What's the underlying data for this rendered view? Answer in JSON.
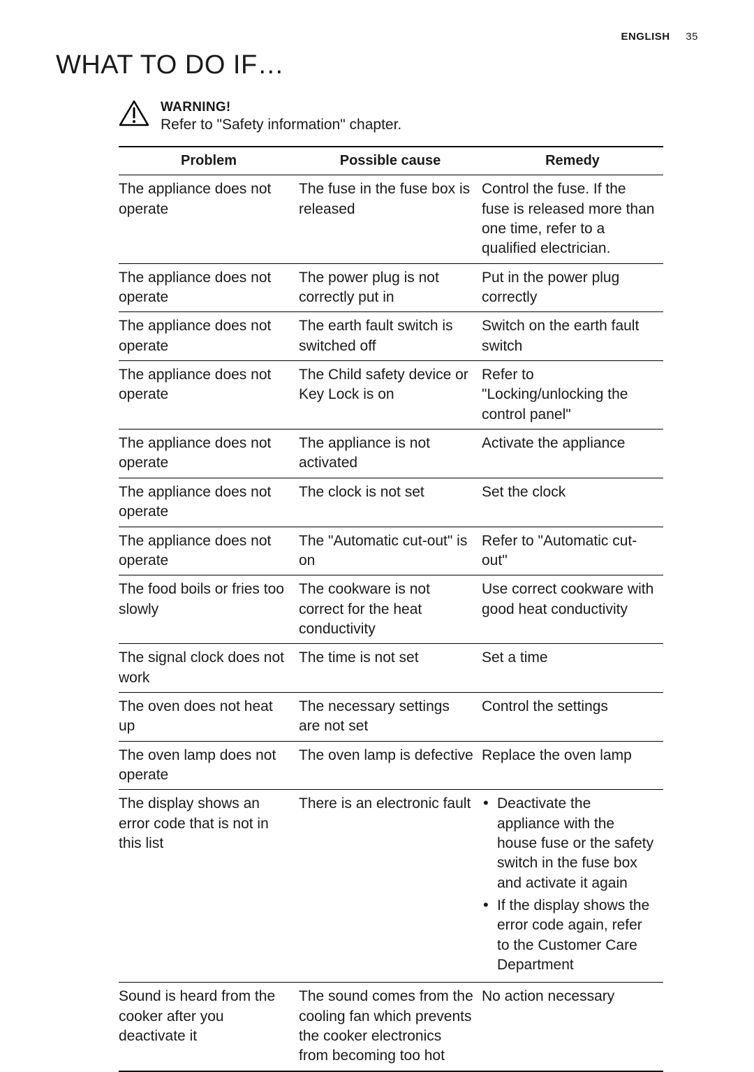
{
  "header": {
    "language": "ENGLISH",
    "page_number": "35"
  },
  "title": "WHAT TO DO IF…",
  "warning": {
    "heading": "WARNING!",
    "body": "Refer to \"Safety information\" chapter."
  },
  "table": {
    "columns": [
      "Problem",
      "Possible cause",
      "Remedy"
    ],
    "rows": [
      {
        "problem": "The appliance does not operate",
        "cause": "The fuse in the fuse box is released",
        "remedy": "Control the fuse. If the fuse is released more than one time, refer to a qualified electrician."
      },
      {
        "problem": "The appliance does not operate",
        "cause": "The power plug is not correctly put in",
        "remedy": "Put in the power plug correctly"
      },
      {
        "problem": "The appliance does not operate",
        "cause": "The earth fault switch is switched off",
        "remedy": "Switch on the earth fault switch"
      },
      {
        "problem": "The appliance does not operate",
        "cause": "The Child safety device or Key Lock is on",
        "remedy": "Refer to \"Locking/unlocking the control panel\""
      },
      {
        "problem": "The appliance does not operate",
        "cause": "The appliance is not activated",
        "remedy": "Activate the appliance"
      },
      {
        "problem": "The appliance does not operate",
        "cause": "The clock is not set",
        "remedy": "Set the clock"
      },
      {
        "problem": "The appliance does not operate",
        "cause": "The \"Automatic cut-out\" is on",
        "remedy": "Refer to \"Automatic cut-out\""
      },
      {
        "problem": "The food boils or fries too slowly",
        "cause": "The cookware is not correct for the heat conductivity",
        "remedy": "Use correct cookware with good heat conductivity"
      },
      {
        "problem": "The signal clock does not work",
        "cause": "The time is not set",
        "remedy": "Set a time"
      },
      {
        "problem": "The oven does not heat up",
        "cause": "The necessary settings are not set",
        "remedy": "Control the settings"
      },
      {
        "problem": "The oven lamp does not operate",
        "cause": "The oven lamp is defective",
        "remedy": "Replace the oven lamp"
      },
      {
        "problem": "The display shows an error code that is not in this list",
        "cause": "There is an electronic fault",
        "remedy_list": [
          "Deactivate the appliance with the house fuse or the safety switch in the fuse box and activate it again",
          "If the display shows the error code again, refer to the Customer Care Department"
        ]
      },
      {
        "problem": "Sound is heard from the cooker after you deactivate it",
        "cause": "The sound comes from the cooling fan which prevents the cooker electronics from becoming too hot",
        "remedy": "No action necessary"
      }
    ]
  },
  "colors": {
    "text": "#1a1a1a",
    "background": "#ffffff",
    "rule": "#000000"
  }
}
